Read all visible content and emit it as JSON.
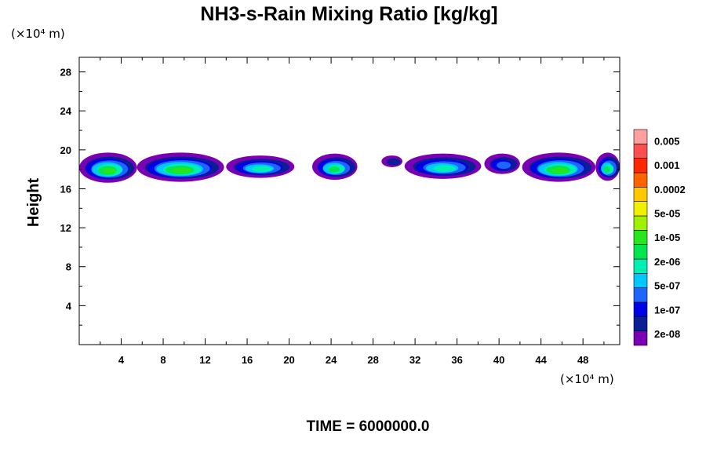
{
  "chart_data": {
    "type": "heatmap",
    "title": "NH3-s-Rain Mixing Ratio [kg/kg]",
    "xlabel": "",
    "ylabel": "Height",
    "x_unit": "(×10⁴ m)",
    "y_unit": "(×10⁴ m)",
    "xlim": [
      0,
      51.5
    ],
    "ylim": [
      0,
      29.5
    ],
    "x_ticks": [
      "4",
      "8",
      "12",
      "16",
      "20",
      "24",
      "28",
      "32",
      "36",
      "40",
      "44",
      "48"
    ],
    "y_ticks": [
      "4",
      "8",
      "12",
      "16",
      "20",
      "24",
      "28"
    ],
    "footer": "TIME = 6000000.0",
    "colorbar": {
      "levels": [
        "2e-08",
        "1e-07",
        "5e-07",
        "2e-06",
        "1e-05",
        "5e-05",
        "0.0002",
        "0.001",
        "0.005"
      ],
      "colors": [
        "#7a00b4",
        "#0a1e96",
        "#0000e6",
        "#1e64ff",
        "#00c8ff",
        "#00f0b4",
        "#00e650",
        "#28e61e",
        "#a0f000",
        "#f0f000",
        "#ffc800",
        "#ff6400",
        "#ff2800",
        "#ff5050",
        "#ffa0a0"
      ]
    },
    "cloud_blobs": [
      {
        "x0": 0.0,
        "x1": 5.5,
        "y_bottom": 16.7,
        "y_top": 19.8,
        "peak_level": 7
      },
      {
        "x0": 5.5,
        "x1": 13.8,
        "y_bottom": 16.8,
        "y_top": 19.8,
        "peak_level": 7
      },
      {
        "x0": 14.0,
        "x1": 20.5,
        "y_bottom": 17.2,
        "y_top": 19.5,
        "peak_level": 5
      },
      {
        "x0": 22.2,
        "x1": 26.5,
        "y_bottom": 17.0,
        "y_top": 19.7,
        "peak_level": 6
      },
      {
        "x0": 28.8,
        "x1": 30.8,
        "y_bottom": 18.3,
        "y_top": 19.5,
        "peak_level": 1
      },
      {
        "x0": 31.0,
        "x1": 38.3,
        "y_bottom": 17.1,
        "y_top": 19.7,
        "peak_level": 5
      },
      {
        "x0": 38.6,
        "x1": 42.0,
        "y_bottom": 17.6,
        "y_top": 19.7,
        "peak_level": 3
      },
      {
        "x0": 42.2,
        "x1": 49.2,
        "y_bottom": 16.8,
        "y_top": 19.8,
        "peak_level": 7
      },
      {
        "x0": 49.2,
        "x1": 51.5,
        "y_bottom": 16.9,
        "y_top": 19.8,
        "peak_level": 6
      }
    ]
  }
}
